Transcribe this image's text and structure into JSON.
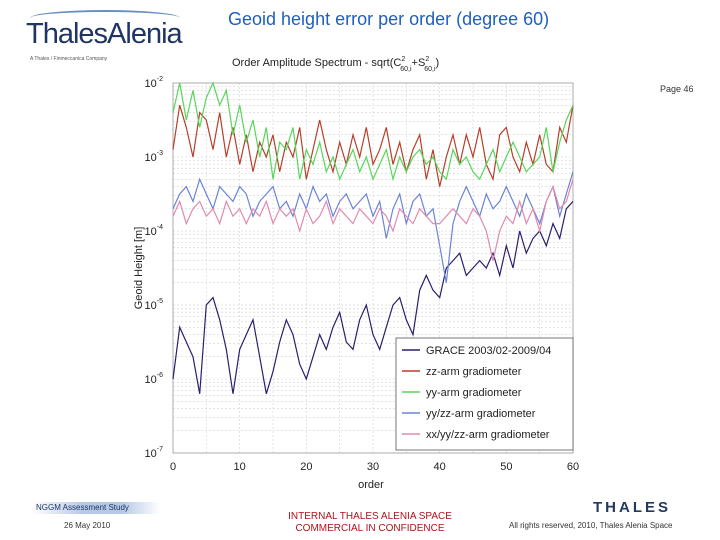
{
  "header": {
    "logo_text": "ThalesAlenia",
    "logo_subtext": "A Thales / Finmeccanica Company",
    "slide_title": "Geoid height error per order (degree 60)",
    "page_label": "Page 46"
  },
  "footer": {
    "study": "NGGM Assessment Study",
    "date": "26 May 2010",
    "confidential_line1": "INTERNAL THALES ALENIA SPACE",
    "confidential_line2": "COMMERCIAL IN CONFIDENCE",
    "rights": "All rights reserved, 2010, Thales Alenia Space",
    "thales_logo": "THALES"
  },
  "colors": {
    "title_blue": "#1f5fbf",
    "confidential_red": "#b0121a",
    "grace": "#2a1f6e",
    "zz": "#b5402a",
    "yy": "#58d65a",
    "yyzz": "#6a84d8",
    "xxyyzz": "#e08ab0"
  },
  "chart_data": {
    "type": "line",
    "title_prefix": "Order Amplitude Spectrum - sqrt(C",
    "title_sub1": "60,i",
    "title_mid": "+S",
    "title_sub2": "60,i",
    "title_suffix": ")",
    "title_sup": "2",
    "xlabel": "order",
    "ylabel": "Geoid Height [m]",
    "xlim": [
      0,
      60
    ],
    "ylim_log10": [
      -7,
      -2
    ],
    "log_y": true,
    "grid": true,
    "legend_position": "lower-right",
    "x_ticks": [
      "0",
      "10",
      "20",
      "30",
      "40",
      "50",
      "60"
    ],
    "y_tick_base": "10",
    "y_tick_exponents": [
      "-7",
      "-6",
      "-5",
      "-4",
      "-3",
      "-2"
    ],
    "x": [
      0,
      1,
      2,
      3,
      4,
      5,
      6,
      7,
      8,
      9,
      10,
      11,
      12,
      13,
      14,
      15,
      16,
      17,
      18,
      19,
      20,
      21,
      22,
      23,
      24,
      25,
      26,
      27,
      28,
      29,
      30,
      31,
      32,
      33,
      34,
      35,
      36,
      37,
      38,
      39,
      40,
      41,
      42,
      43,
      44,
      45,
      46,
      47,
      48,
      49,
      50,
      51,
      52,
      53,
      54,
      55,
      56,
      57,
      58,
      59,
      60
    ],
    "series": [
      {
        "name": "GRACE 2003/02-2009/04",
        "color": "#2a1f6e",
        "values": [
          -6.0,
          -5.3,
          -5.5,
          -5.7,
          -6.2,
          -5.0,
          -4.9,
          -5.2,
          -5.6,
          -6.2,
          -5.6,
          -5.4,
          -5.2,
          -5.7,
          -6.2,
          -5.9,
          -5.5,
          -5.2,
          -5.4,
          -5.8,
          -6.0,
          -5.7,
          -5.4,
          -5.6,
          -5.3,
          -5.1,
          -5.5,
          -5.6,
          -5.2,
          -5.0,
          -5.4,
          -5.6,
          -5.3,
          -5.0,
          -4.9,
          -5.2,
          -5.4,
          -4.8,
          -4.6,
          -4.8,
          -4.9,
          -4.5,
          -4.4,
          -4.3,
          -4.6,
          -4.5,
          -4.4,
          -4.5,
          -4.3,
          -4.6,
          -4.2,
          -4.5,
          -4.0,
          -4.3,
          -4.1,
          -4.0,
          -4.2,
          -3.9,
          -4.1,
          -3.7,
          -3.6
        ]
      },
      {
        "name": "zz-arm gradiometer",
        "color": "#b5402a",
        "values": [
          -2.9,
          -2.3,
          -2.6,
          -3.0,
          -2.4,
          -2.5,
          -2.9,
          -2.4,
          -3.0,
          -2.6,
          -3.1,
          -2.7,
          -3.2,
          -2.8,
          -3.0,
          -2.7,
          -3.2,
          -2.8,
          -3.0,
          -2.6,
          -3.3,
          -2.9,
          -2.5,
          -2.9,
          -3.2,
          -2.8,
          -3.1,
          -2.7,
          -3.0,
          -2.6,
          -3.1,
          -2.9,
          -2.6,
          -3.1,
          -2.8,
          -3.2,
          -2.9,
          -2.7,
          -3.3,
          -2.9,
          -3.4,
          -3.0,
          -2.7,
          -3.1,
          -2.7,
          -3.0,
          -2.6,
          -3.1,
          -3.3,
          -2.7,
          -2.6,
          -3.0,
          -3.2,
          -2.8,
          -3.1,
          -2.7,
          -3.1,
          -3.2,
          -2.6,
          -2.8,
          -2.3
        ]
      },
      {
        "name": "yy-arm gradiometer",
        "color": "#58d65a",
        "values": [
          -2.4,
          -2.0,
          -2.5,
          -2.1,
          -2.6,
          -2.2,
          -2.0,
          -2.3,
          -2.1,
          -2.7,
          -2.3,
          -2.8,
          -2.5,
          -3.0,
          -2.6,
          -3.3,
          -2.8,
          -2.9,
          -2.6,
          -3.3,
          -2.9,
          -3.1,
          -2.8,
          -3.2,
          -3.0,
          -3.3,
          -3.1,
          -2.9,
          -3.2,
          -3.0,
          -3.3,
          -3.1,
          -2.9,
          -3.3,
          -3.0,
          -3.2,
          -3.0,
          -2.9,
          -3.1,
          -3.0,
          -3.2,
          -3.3,
          -2.9,
          -3.1,
          -3.0,
          -3.2,
          -3.3,
          -3.1,
          -2.9,
          -3.2,
          -3.0,
          -2.8,
          -3.0,
          -3.2,
          -3.1,
          -3.0,
          -2.6,
          -3.2,
          -2.8,
          -2.5,
          -2.3
        ]
      },
      {
        "name": "yy/zz-arm gradiometer",
        "color": "#6a84d8",
        "values": [
          -3.7,
          -3.5,
          -3.4,
          -3.6,
          -3.3,
          -3.5,
          -3.7,
          -3.4,
          -3.5,
          -3.6,
          -3.4,
          -3.5,
          -3.8,
          -3.6,
          -3.5,
          -3.4,
          -3.7,
          -3.6,
          -3.8,
          -3.5,
          -3.7,
          -3.4,
          -3.6,
          -3.5,
          -3.8,
          -3.6,
          -3.5,
          -3.7,
          -3.6,
          -3.5,
          -3.8,
          -3.6,
          -4.1,
          -3.7,
          -3.5,
          -3.9,
          -3.6,
          -3.5,
          -3.8,
          -3.7,
          -4.2,
          -4.7,
          -3.9,
          -3.6,
          -3.4,
          -3.6,
          -3.8,
          -3.5,
          -3.7,
          -3.6,
          -3.4,
          -3.6,
          -3.8,
          -3.5,
          -3.7,
          -3.9,
          -3.6,
          -3.4,
          -3.8,
          -3.5,
          -3.2
        ]
      },
      {
        "name": "xx/yy/zz-arm gradiometer",
        "color": "#e08ab0",
        "values": [
          -3.8,
          -3.6,
          -3.9,
          -3.7,
          -3.6,
          -3.8,
          -3.7,
          -3.9,
          -3.6,
          -3.8,
          -3.7,
          -3.9,
          -3.7,
          -3.8,
          -3.6,
          -3.9,
          -3.7,
          -3.8,
          -3.7,
          -4.0,
          -3.7,
          -3.9,
          -3.8,
          -3.6,
          -3.9,
          -3.7,
          -3.8,
          -3.9,
          -3.7,
          -3.8,
          -3.9,
          -3.7,
          -3.8,
          -4.0,
          -3.7,
          -3.8,
          -3.9,
          -3.7,
          -3.8,
          -3.9,
          -3.9,
          -3.8,
          -3.7,
          -3.8,
          -3.9,
          -3.7,
          -3.8,
          -4.0,
          -4.4,
          -4.0,
          -3.8,
          -3.9,
          -3.6,
          -3.9,
          -3.7,
          -4.0,
          -3.6,
          -3.4,
          -3.7,
          -3.6,
          -3.3
        ]
      }
    ]
  }
}
